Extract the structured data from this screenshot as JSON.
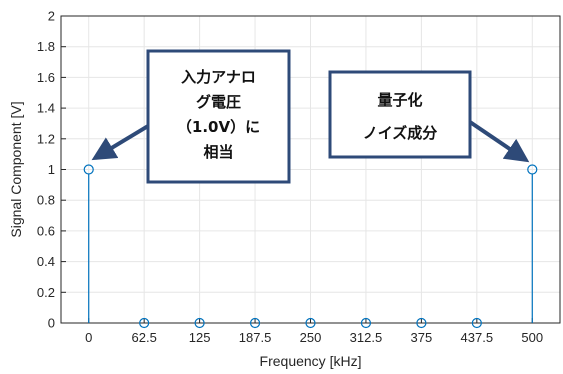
{
  "chart_data": {
    "type": "stem",
    "xlabel": "Frequency [kHz]",
    "ylabel": "Signal Component [V]",
    "x_ticks": [
      "0",
      "62.5",
      "125",
      "187.5",
      "250",
      "312.5",
      "375",
      "437.5",
      "500"
    ],
    "y_ticks": [
      "0",
      "0.2",
      "0.4",
      "0.6",
      "0.8",
      "1",
      "1.2",
      "1.4",
      "1.6",
      "1.8",
      "2"
    ],
    "xlim": [
      -31.25,
      531.25
    ],
    "ylim": [
      0,
      2
    ],
    "grid": true,
    "x": [
      0,
      62.5,
      125,
      187.5,
      250,
      312.5,
      375,
      437.5,
      500
    ],
    "y": [
      1,
      0,
      0,
      0,
      0,
      0,
      0,
      0,
      1
    ],
    "series_color": "#0072BD",
    "annotations": [
      {
        "lines": [
          "入力アナロ",
          "グ電圧",
          "（1.0V）に",
          "相当"
        ],
        "points_to": [
          0,
          1
        ]
      },
      {
        "lines": [
          "量子化",
          "ノイズ成分"
        ],
        "points_to": [
          500,
          1
        ]
      }
    ],
    "callout_border_color": "#2E4A78"
  }
}
